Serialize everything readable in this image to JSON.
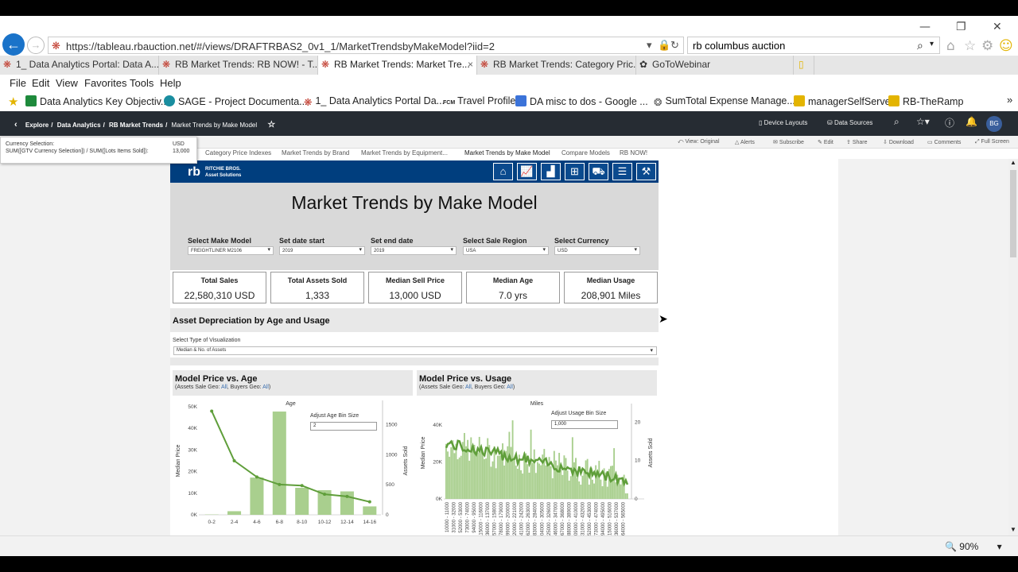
{
  "browser": {
    "url": "https://tableau.rbauction.net/#/views/DRAFTRBAS2_0v1_1/MarketTrendsbyMakeModel?iid=2",
    "search_value": "rb columbus auction",
    "tabs": [
      {
        "label": "1_ Data Analytics Portal: Data A..."
      },
      {
        "label": "RB Market Trends: RB NOW! - T..."
      },
      {
        "label": "RB Market Trends: Market Tre..."
      },
      {
        "label": "RB Market Trends: Category Pric..."
      },
      {
        "label": "GoToWebinar"
      }
    ],
    "menu": [
      "File",
      "Edit",
      "View",
      "Favorites",
      "Tools",
      "Help"
    ],
    "favorites": [
      "Data Analytics Key Objectiv...",
      "SAGE - Project Documenta...",
      "1_ Data Analytics Portal Da...",
      "Travel Profile",
      "DA misc to dos - Google ...",
      "SumTotal Expense Manage...",
      "managerSelfServe",
      "RB-TheRamp"
    ],
    "fcm_label": "FCM",
    "zoom": "90%"
  },
  "tableau": {
    "breadcrumbs": [
      "Explore",
      "Data Analytics",
      "RB Market Trends",
      "Market Trends by Make Model"
    ],
    "header_actions": [
      "Device Layouts",
      "Data Sources"
    ],
    "avatar": "BG",
    "toolbar": [
      "View: Original",
      "Alerts",
      "Subscribe",
      "Edit",
      "Share",
      "Download",
      "Comments",
      "Full Screen"
    ],
    "sheet_tabs": [
      "Category Price Indexes",
      "Market Trends by Brand",
      "Market Trends by Equipment...",
      "Market Trends by Make Model",
      "Compare Models",
      "RB NOW!"
    ],
    "tooltip": {
      "line1_label": "Currency Selection:",
      "line1_value": "USD",
      "line2_label": "SUM([GTV Currency Selection]) / SUM([Lots Items Sold]):",
      "line2_value": "13,000"
    }
  },
  "dashboard": {
    "logo_text": "rb",
    "logo_sub1": "RITCHIE BROS.",
    "logo_sub2": "Asset Solutions",
    "title": "Market Trends by Make Model",
    "filters": [
      {
        "label": "Select Make Model",
        "value": "FREIGHTLINER M2106"
      },
      {
        "label": "Set date start",
        "value": "2019"
      },
      {
        "label": "Set end date",
        "value": "2019"
      },
      {
        "label": "Select Sale Region",
        "value": "USA"
      },
      {
        "label": "Select Currency",
        "value": "USD"
      }
    ],
    "kpis": [
      {
        "label": "Total Sales",
        "value": "22,580,310 USD"
      },
      {
        "label": "Total Assets Sold",
        "value": "1,333"
      },
      {
        "label": "Median Sell Price",
        "value": "13,000 USD"
      },
      {
        "label": "Median Age",
        "value": "7.0 yrs"
      },
      {
        "label": "Median Usage",
        "value": "208,901 Miles"
      }
    ],
    "section_title": "Asset Depreciation by Age and Usage",
    "viz_select_label": "Select Type of Visualization",
    "viz_select_value": "Median & No. of Assets",
    "chart_age": {
      "title": "Model Price vs. Age",
      "sub_prefix": "(Assets Sale Geo: ",
      "sub_geo1": "All",
      "sub_mid": ", Buyers Geo: ",
      "sub_geo2": "All",
      "sub_suffix": ")",
      "bin_label": "Adjust Age Bin Size",
      "bin_value": "2"
    },
    "chart_usage": {
      "title": "Model Price vs. Usage",
      "sub_prefix": "(Assets Sale Geo: ",
      "sub_geo1": "All",
      "sub_mid": ", Buyers Geo: ",
      "sub_geo2": "All",
      "sub_suffix": ")",
      "bin_label": "Adjust Usage Bin Size",
      "bin_value": "1,000"
    }
  },
  "chart_data": [
    {
      "type": "bar",
      "title": "Model Price vs. Age",
      "xlabel": "Age",
      "ylabel": "Median Price",
      "y2label": "Assets Sold",
      "categories": [
        "0-2",
        "2-4",
        "4-6",
        "6-8",
        "8-10",
        "10-12",
        "12-14",
        "14-16"
      ],
      "yticks": [
        "50K",
        "40K",
        "30K",
        "20K",
        "10K",
        "0K"
      ],
      "y2ticks": [
        "1500",
        "1000",
        "500",
        "0"
      ],
      "ylim": [
        0,
        50000
      ],
      "y2lim": [
        0,
        1800
      ],
      "series": [
        {
          "name": "Assets Sold",
          "kind": "bar",
          "axis": "y2",
          "values": [
            5,
            60,
            620,
            1720,
            450,
            410,
            390,
            140
          ]
        },
        {
          "name": "Median Price",
          "kind": "line",
          "axis": "y",
          "values": [
            48000,
            25000,
            17500,
            14000,
            13500,
            9500,
            8500,
            6000
          ]
        }
      ],
      "color": "#5f9e3a",
      "bar_color": "#a9cf8e"
    },
    {
      "type": "bar",
      "title": "Model Price vs. Usage",
      "xlabel": "Miles",
      "ylabel": "Median Price",
      "y2label": "Assets Sold",
      "yticks": [
        "40K",
        "20K",
        "0K"
      ],
      "y2ticks": [
        "20",
        "10",
        "0"
      ],
      "xticks": [
        "10000 - 11000",
        "31000 - 32000",
        "52000 - 53000",
        "73000 - 74000",
        "94000 - 95000",
        "115000 - 116000",
        "136000 - 137000",
        "157000 - 158000",
        "178000 - 179000",
        "199000 - 200000",
        "220000 - 221000",
        "241000 - 242000",
        "262000 - 263000",
        "283000 - 284000",
        "304000 - 305000",
        "325000 - 326000",
        "346000 - 347000",
        "367000 - 368000",
        "388000 - 389000",
        "409000 - 410000",
        "431000 - 432000",
        "452000 - 453000",
        "473000 - 474000",
        "494000 - 495000",
        "515000 - 516000",
        "536000 - 537000",
        "564000 - 565000"
      ],
      "ylim": [
        0,
        50000
      ],
      "y2lim": [
        0,
        24
      ],
      "series_summary": "dense per-1000-mile bins: median price roughly 30K declining to ~8K, assets sold per bin mostly 2–15"
    }
  ]
}
